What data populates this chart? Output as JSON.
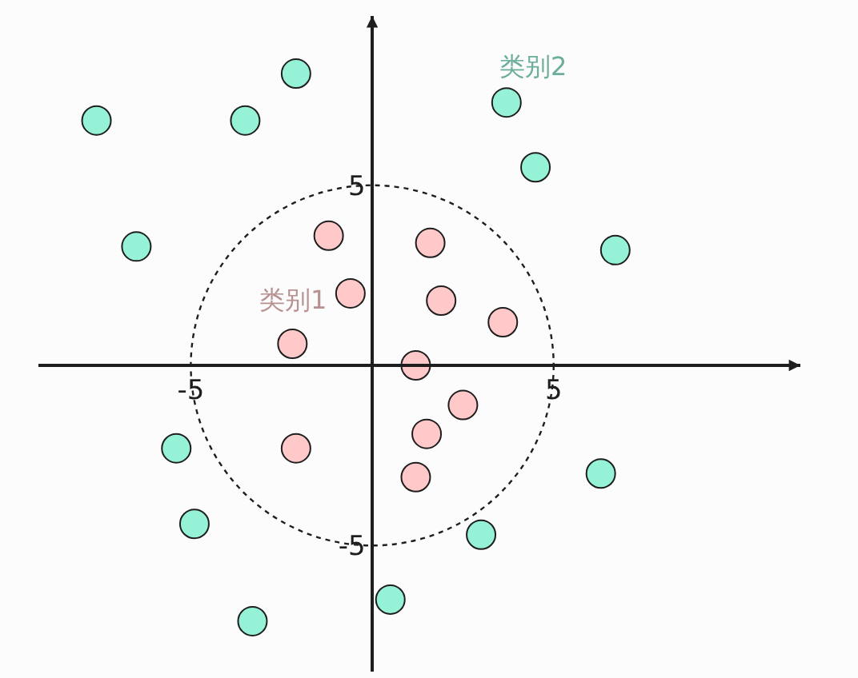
{
  "chart_data": {
    "type": "scatter",
    "marker": "circle",
    "grid": false,
    "legend": false,
    "xlim": [
      -9.2,
      11.8
    ],
    "ylim": [
      -8.5,
      9.7
    ],
    "xticks": [
      -5,
      5
    ],
    "yticks": [
      -5,
      5
    ],
    "series": [
      {
        "name": "类别1",
        "color": "#ffc9c9",
        "x": [
          -1.2,
          1.6,
          -0.6,
          1.9,
          3.6,
          -2.2,
          1.2,
          2.5,
          1.5,
          -2.1,
          1.2
        ],
        "values": [
          3.6,
          3.4,
          2.0,
          1.8,
          1.2,
          0.6,
          0,
          -1.1,
          -1.9,
          -2.3,
          -3.1
        ]
      },
      {
        "name": "类别2",
        "color": "#96f2d7",
        "x": [
          -7.6,
          -2.1,
          -3.5,
          3.7,
          4.5,
          -6.5,
          6.7,
          -5.4,
          6.3,
          -4.9,
          3.0,
          -3.3,
          0.5
        ],
        "values": [
          6.8,
          8.1,
          6.8,
          7.3,
          5.5,
          3.3,
          3.2,
          -2.3,
          -3.0,
          -4.4,
          -4.7,
          -7.1,
          -6.5
        ]
      }
    ]
  }
}
